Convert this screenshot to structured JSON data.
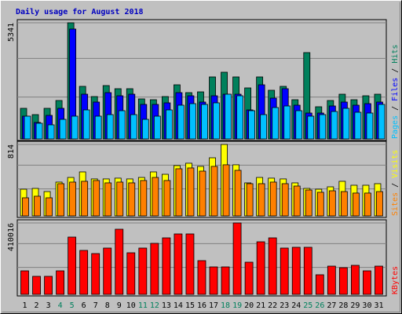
{
  "chart_data": {
    "type": "bar",
    "title": "Daily usage for August 2018",
    "categories": [
      "1",
      "2",
      "3",
      "4",
      "5",
      "6",
      "7",
      "8",
      "9",
      "10",
      "11",
      "12",
      "13",
      "14",
      "15",
      "16",
      "17",
      "18",
      "19",
      "20",
      "21",
      "22",
      "23",
      "24",
      "25",
      "26",
      "27",
      "28",
      "29",
      "30",
      "31"
    ],
    "category_colors": [
      "#000000",
      "#000000",
      "#000000",
      "#00805c",
      "#00805c",
      "#000000",
      "#000000",
      "#000000",
      "#000000",
      "#000000",
      "#00805c",
      "#00805c",
      "#000000",
      "#000000",
      "#000000",
      "#000000",
      "#000000",
      "#00805c",
      "#00805c",
      "#000000",
      "#000000",
      "#000000",
      "#000000",
      "#000000",
      "#00805c",
      "#00805c",
      "#000000",
      "#000000",
      "#000000",
      "#000000",
      "#000000"
    ],
    "legend_separator": " / ",
    "panels": [
      {
        "ylim": [
          0,
          5341
        ],
        "yticks": [
          5341
        ],
        "series": [
          {
            "name": "Hits",
            "color": "#00805c",
            "values": [
              1408,
              1119,
              1408,
              1768,
              5341,
              2418,
              1949,
              2454,
              2310,
              2310,
              1841,
              1804,
              1949,
              2490,
              2129,
              2165,
              2851,
              3068,
              2851,
              2346,
              2851,
              2238,
              2418,
              1804,
              3970,
              1480,
              1768,
              2057,
              1804,
              1985,
              2057
            ]
          },
          {
            "name": "Files",
            "color": "#0000ff",
            "values": [
              1047,
              758,
              1083,
              1408,
              5053,
              2057,
              1696,
              2129,
              1985,
              2057,
              1588,
              1588,
              1660,
              2129,
              1985,
              1696,
              1985,
              2057,
              2057,
              1335,
              2490,
              1877,
              2310,
              1552,
              1191,
              1191,
              1516,
              1696,
              1552,
              1624,
              1696
            ]
          },
          {
            "name": "Pages",
            "color": "#00c0ff",
            "values": [
              1047,
              722,
              650,
              902,
              1047,
              1335,
              1047,
              1119,
              1299,
              1119,
              902,
              1047,
              1335,
              1552,
              1624,
              1588,
              1660,
              2057,
              1985,
              1299,
              1119,
              1444,
              1516,
              1299,
              1047,
              1119,
              1263,
              1408,
              1227,
              1191,
              1588
            ]
          }
        ]
      },
      {
        "ylim": [
          0,
          814
        ],
        "yticks": [
          814
        ],
        "series": [
          {
            "name": "Visits",
            "color": "#ffff00",
            "values": [
              304,
              313,
              277,
              385,
              438,
              501,
              421,
              421,
              430,
              421,
              438,
              501,
              474,
              573,
              600,
              564,
              662,
              814,
              582,
              376,
              438,
              430,
              421,
              376,
              313,
              304,
              331,
              394,
              349,
              349,
              367
            ]
          },
          {
            "name": "Sites",
            "color": "#ff8000",
            "values": [
              206,
              224,
              206,
              367,
              385,
              394,
              403,
              376,
              385,
              376,
              403,
              438,
              403,
              537,
              546,
              510,
              564,
              582,
              519,
              367,
              367,
              385,
              367,
              340,
              295,
              269,
              286,
              277,
              260,
              260,
              277
            ]
          }
        ]
      },
      {
        "ylim": [
          0,
          410016
        ],
        "yticks": [
          410016
        ],
        "series": [
          {
            "name": "KBytes",
            "color": "#ff0000",
            "values": [
              135180,
              103638,
              103638,
              135180,
              328938,
              252336,
              234312,
              265854,
              373998,
              238818,
              265854,
              292890,
              324432,
              346962,
              346962,
              193758,
              157710,
              157710,
              410016,
              184746,
              301902,
              324432,
              265854,
              270360,
              270360,
              112650,
              162216,
              153204,
              166722,
              135180,
              162216
            ]
          }
        ]
      }
    ]
  }
}
